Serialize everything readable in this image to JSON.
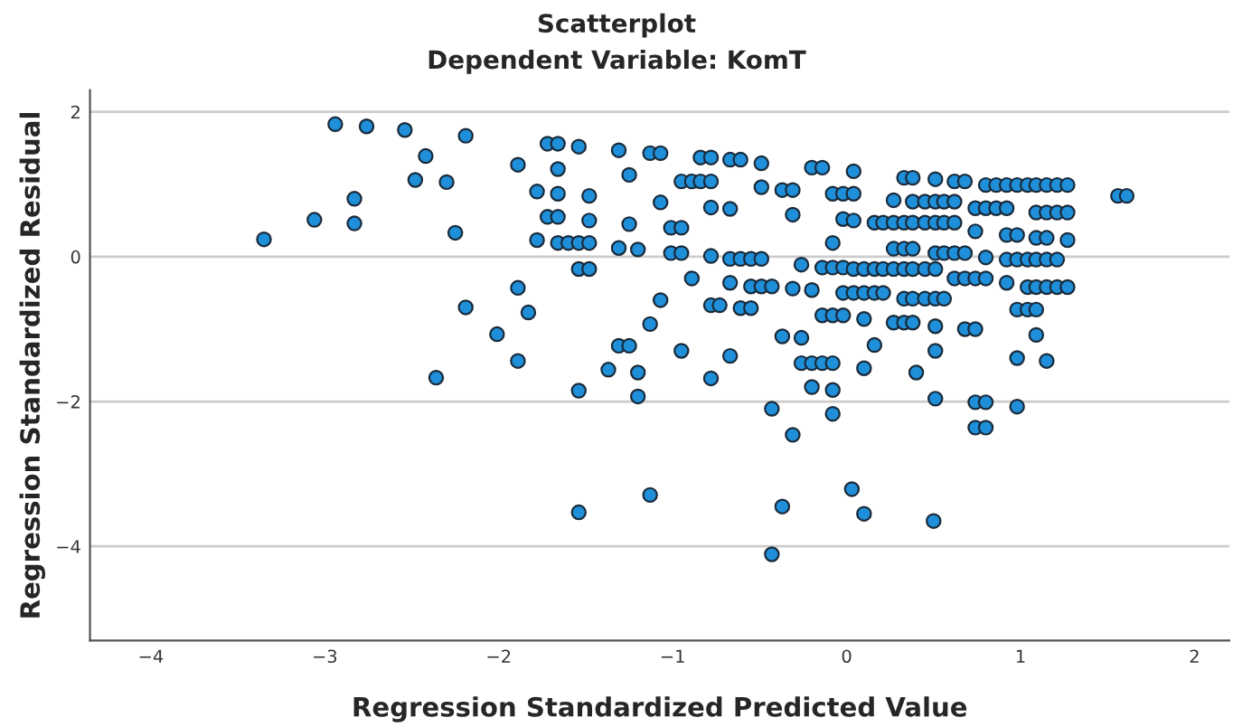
{
  "chart_data": {
    "type": "scatter",
    "title": "Scatterplot",
    "subtitle": "Dependent Variable: KomT",
    "xlabel": "Regression Standardized Predicted Value",
    "ylabel": "Regression Standardized Residual",
    "x": [
      -3.35,
      -3.06,
      -2.94,
      -2.83,
      -2.83,
      -2.76,
      -2.54,
      -2.42,
      -2.48,
      -2.3,
      -2.25,
      -2.19,
      -2.19,
      -2.36,
      -1.72,
      -1.66,
      -1.54,
      -1.89,
      -1.66,
      -1.78,
      -1.66,
      -1.48,
      -1.72,
      -1.66,
      -1.48,
      -1.78,
      -1.66,
      -1.6,
      -1.54,
      -1.48,
      -1.54,
      -1.48,
      -1.89,
      -1.83,
      -2.01,
      -1.89,
      -1.54,
      -1.31,
      -1.13,
      -1.07,
      -1.25,
      -1.07,
      -1.25,
      -1.31,
      -1.2,
      -1.01,
      -0.95,
      -1.01,
      -0.95,
      -0.89,
      -1.07,
      -1.13,
      -1.31,
      -1.25,
      -1.37,
      -1.2,
      -1.2,
      -0.95,
      -0.84,
      -0.78,
      -0.95,
      -0.89,
      -0.84,
      -0.78,
      -0.78,
      -0.67,
      -0.67,
      -0.61,
      -0.49,
      -0.49,
      -0.37,
      -0.31,
      -0.31,
      -0.78,
      -0.67,
      -0.61,
      -0.55,
      -0.49,
      -0.67,
      -0.55,
      -0.49,
      -0.43,
      -0.31,
      -0.78,
      -0.73,
      -0.61,
      -0.55,
      -0.37,
      -0.26,
      -0.67,
      -0.78,
      -0.43,
      -0.2,
      -0.14,
      -0.26,
      -0.2,
      -0.14,
      -0.08,
      -0.02,
      -0.14,
      -0.08,
      -0.02,
      -0.26,
      -0.2,
      -0.14,
      -0.08,
      -0.2,
      -0.08,
      -0.08,
      -0.08,
      -0.08,
      -0.02,
      -0.02,
      0.04,
      0.04,
      0.04,
      0.33,
      0.38,
      0.51,
      0.62,
      0.68,
      0.8,
      0.86,
      0.92,
      0.98,
      1.04,
      1.09,
      1.15,
      1.21,
      1.27,
      1.56,
      1.61,
      0.27,
      0.38,
      0.45,
      0.51,
      0.56,
      0.62,
      0.74,
      0.8,
      0.86,
      0.92,
      1.09,
      1.15,
      1.21,
      1.27,
      0.16,
      0.21,
      0.27,
      0.33,
      0.38,
      0.45,
      0.51,
      0.56,
      0.62,
      0.74,
      0.92,
      0.98,
      1.09,
      1.15,
      1.27,
      0.27,
      0.33,
      0.38,
      0.51,
      0.56,
      0.62,
      0.68,
      0.8,
      0.92,
      0.98,
      1.04,
      1.09,
      1.15,
      1.21,
      0.04,
      0.1,
      0.16,
      0.21,
      0.27,
      0.33,
      0.38,
      0.45,
      0.51,
      0.62,
      0.68,
      0.74,
      0.8,
      0.92,
      1.04,
      1.09,
      1.15,
      1.21,
      1.27,
      -0.02,
      0.04,
      0.1,
      0.16,
      0.21,
      0.33,
      0.38,
      0.45,
      0.51,
      0.56,
      0.98,
      1.04,
      1.09,
      0.1,
      0.27,
      0.33,
      0.38,
      0.51,
      0.68,
      0.74,
      1.09,
      0.16,
      0.51,
      0.1,
      0.98,
      1.15,
      0.4,
      0.51,
      0.74,
      0.8,
      0.98,
      -0.31,
      0.74,
      0.8,
      -1.54,
      -1.13,
      -0.37,
      0.03,
      0.1,
      0.5,
      -0.43
    ],
    "values": [
      0.24,
      0.51,
      1.83,
      0.8,
      0.46,
      1.8,
      1.75,
      1.39,
      1.06,
      1.03,
      0.33,
      1.67,
      -0.7,
      -1.67,
      1.56,
      1.56,
      1.52,
      1.27,
      1.21,
      0.9,
      0.87,
      0.84,
      0.55,
      0.55,
      0.5,
      0.23,
      0.19,
      0.19,
      0.19,
      0.19,
      -0.17,
      -0.17,
      -0.43,
      -0.77,
      -1.07,
      -1.44,
      -1.85,
      1.47,
      1.43,
      1.43,
      1.13,
      0.75,
      0.45,
      0.12,
      0.1,
      0.4,
      0.4,
      0.05,
      0.05,
      -0.3,
      -0.6,
      -0.93,
      -1.23,
      -1.23,
      -1.56,
      -1.6,
      -1.93,
      -1.3,
      1.37,
      1.37,
      1.04,
      1.04,
      1.04,
      1.04,
      0.68,
      0.66,
      1.34,
      1.34,
      1.29,
      0.96,
      0.92,
      0.92,
      0.58,
      0.01,
      -0.03,
      -0.03,
      -0.03,
      -0.03,
      -0.36,
      -0.41,
      -0.41,
      -0.41,
      -0.44,
      -0.67,
      -0.67,
      -0.71,
      -0.71,
      -1.1,
      -1.12,
      -1.37,
      -1.68,
      -2.1,
      1.23,
      1.23,
      -0.11,
      -0.46,
      -0.15,
      -0.15,
      -0.15,
      -0.81,
      -0.81,
      -0.81,
      -1.47,
      -1.47,
      -1.47,
      -1.47,
      -1.8,
      -1.84,
      -2.17,
      0.19,
      0.87,
      0.87,
      0.52,
      1.18,
      0.87,
      0.5,
      1.09,
      1.09,
      1.07,
      1.04,
      1.04,
      0.99,
      0.99,
      0.99,
      0.99,
      0.99,
      0.99,
      0.99,
      0.99,
      0.99,
      0.84,
      0.84,
      0.78,
      0.76,
      0.76,
      0.76,
      0.76,
      0.76,
      0.67,
      0.67,
      0.67,
      0.67,
      0.61,
      0.61,
      0.61,
      0.61,
      0.47,
      0.47,
      0.47,
      0.47,
      0.47,
      0.47,
      0.47,
      0.47,
      0.47,
      0.35,
      0.3,
      0.3,
      0.26,
      0.26,
      0.23,
      0.11,
      0.11,
      0.11,
      0.05,
      0.05,
      0.05,
      0.05,
      -0.01,
      -0.04,
      -0.04,
      -0.04,
      -0.04,
      -0.04,
      -0.04,
      -0.17,
      -0.17,
      -0.17,
      -0.17,
      -0.17,
      -0.17,
      -0.17,
      -0.17,
      -0.17,
      -0.3,
      -0.3,
      -0.3,
      -0.3,
      -0.36,
      -0.42,
      -0.42,
      -0.42,
      -0.42,
      -0.42,
      -0.5,
      -0.5,
      -0.5,
      -0.5,
      -0.5,
      -0.58,
      -0.58,
      -0.58,
      -0.58,
      -0.58,
      -0.73,
      -0.73,
      -0.73,
      -0.86,
      -0.91,
      -0.91,
      -0.91,
      -0.96,
      -1.0,
      -1.0,
      -1.08,
      -1.22,
      -1.3,
      -1.54,
      -1.4,
      -1.44,
      -1.6,
      -1.96,
      -2.01,
      -2.01,
      -2.07,
      -2.46,
      -2.36,
      -2.36,
      -3.53,
      -3.29,
      -3.45,
      -3.21,
      -3.55,
      -3.65,
      -4.11
    ],
    "color": "#1e8fd8",
    "marker": "circle",
    "grid": "y",
    "xlim": [
      -4.35,
      2.2
    ],
    "xticks": [
      {
        "value": -4,
        "label": "−4"
      },
      {
        "value": -3,
        "label": "−3"
      },
      {
        "value": -2,
        "label": "−2"
      },
      {
        "value": -1,
        "label": "−1"
      },
      0,
      1,
      2
    ],
    "ylim": [
      -5.3,
      2.3
    ],
    "yticks": [
      {
        "value": -4,
        "label": "−4"
      },
      {
        "value": -2,
        "label": "−2"
      },
      0,
      2
    ]
  }
}
